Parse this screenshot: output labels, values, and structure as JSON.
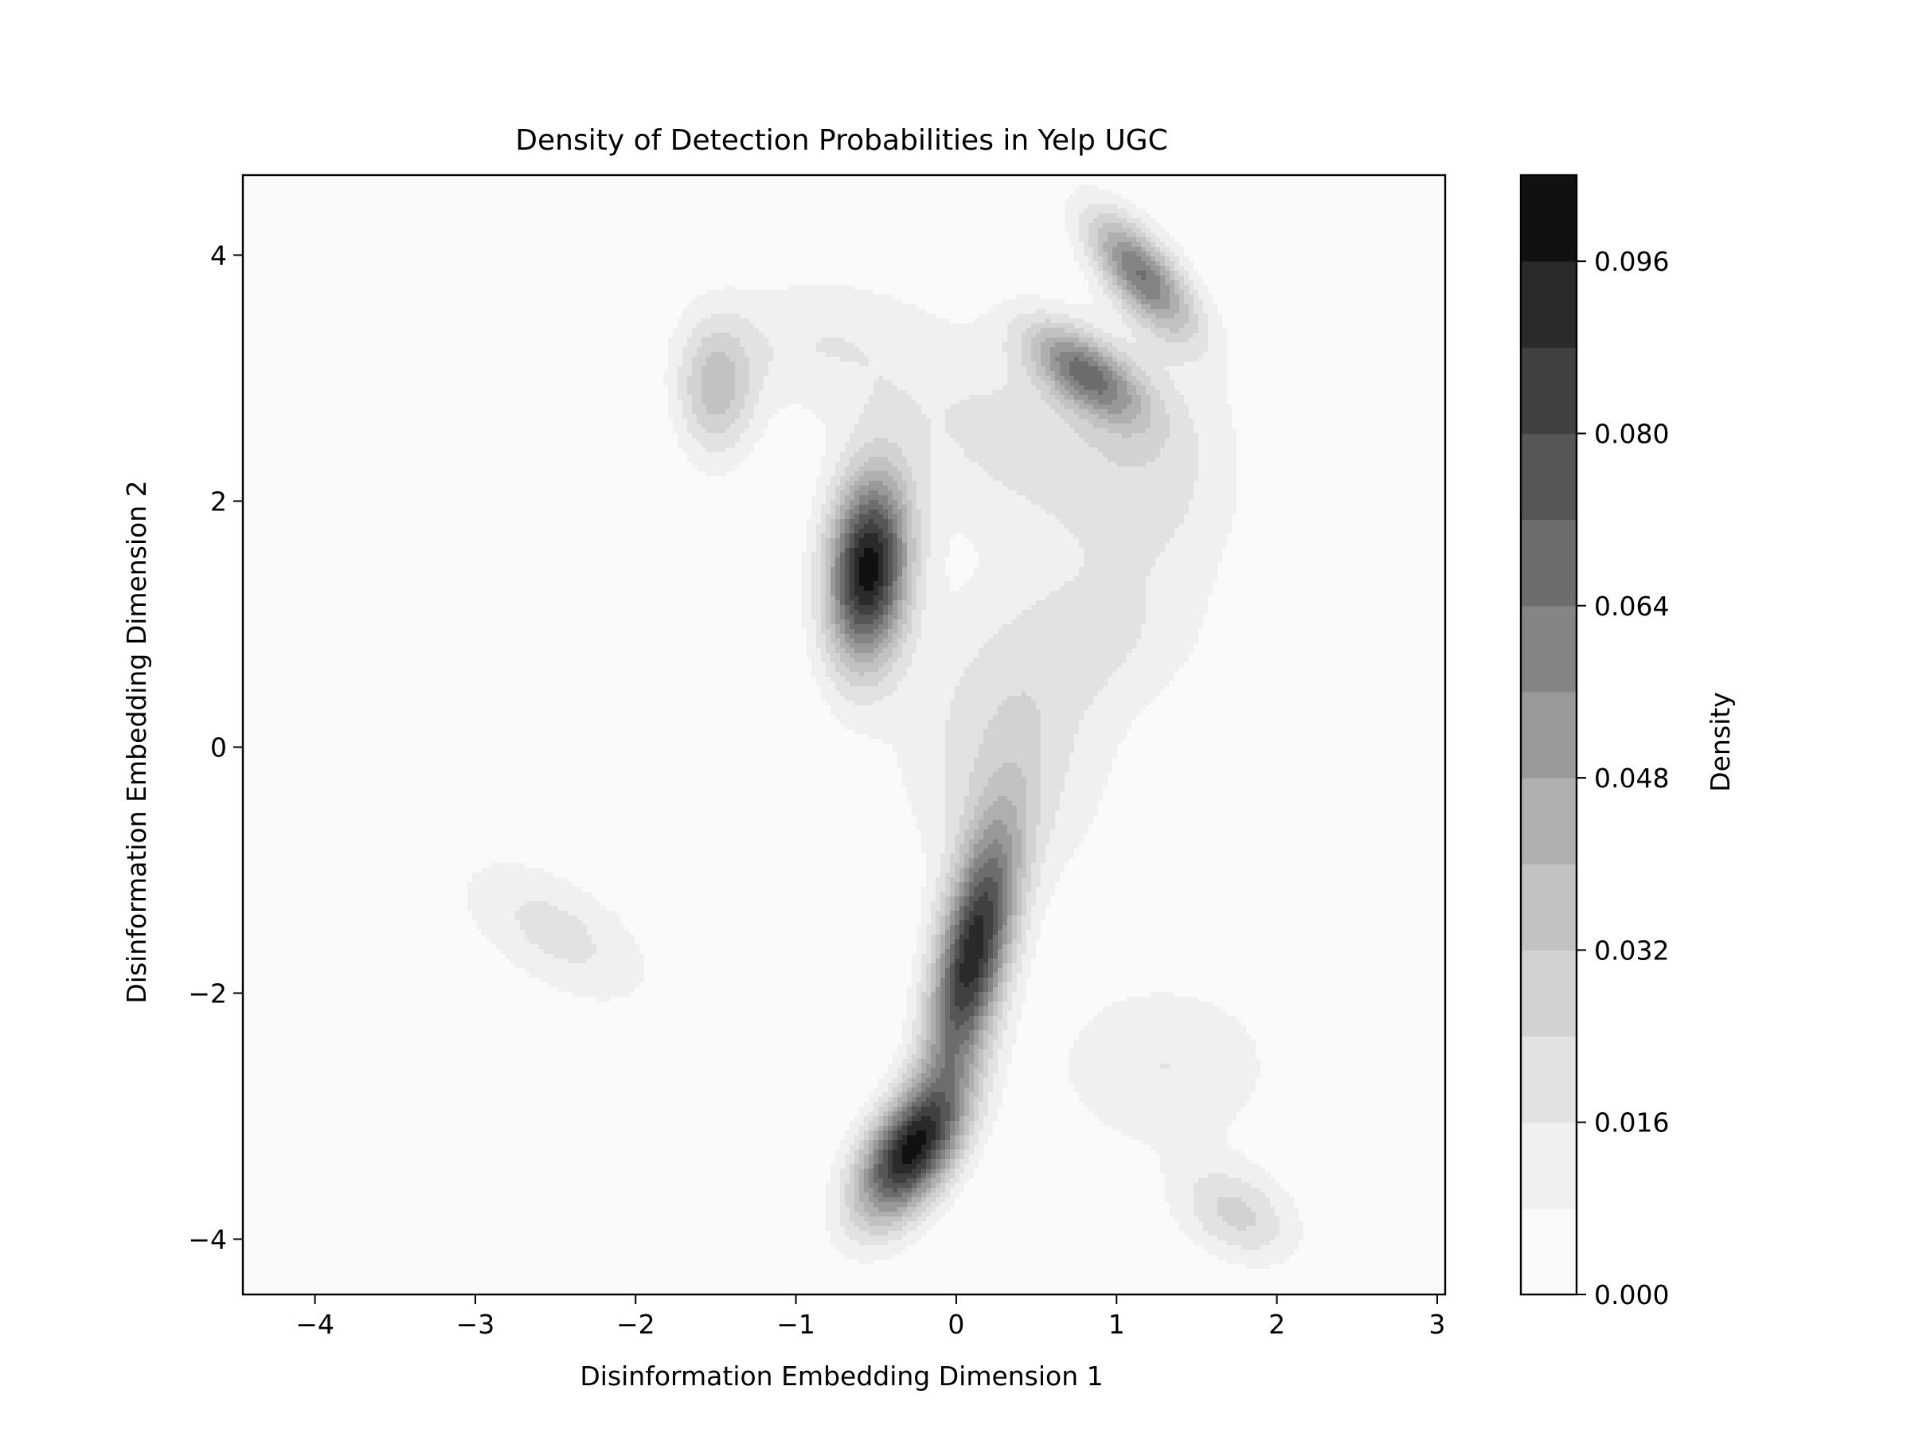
{
  "chart_data": {
    "type": "heatmap",
    "subtype": "filled-contour",
    "title": "Density of Detection Probabilities in Yelp UGC",
    "xlabel": "Disinformation Embedding Dimension 1",
    "ylabel": "Disinformation Embedding Dimension 2",
    "xlim": [
      -4.45,
      3.05
    ],
    "ylim": [
      -4.45,
      4.65
    ],
    "xticks": [
      -4,
      -3,
      -2,
      -1,
      0,
      1,
      2,
      3
    ],
    "yticks": [
      -4,
      -2,
      0,
      2,
      4
    ],
    "xtick_labels": [
      "−4",
      "−3",
      "−2",
      "−1",
      "0",
      "1",
      "2",
      "3"
    ],
    "ytick_labels": [
      "−4",
      "−2",
      "0",
      "2",
      "4"
    ],
    "colormap": "Greys",
    "grid": false,
    "colorbar": {
      "label": "Density",
      "range": [
        0.0,
        0.104
      ],
      "levels": [
        0.0,
        0.008,
        0.016,
        0.024,
        0.032,
        0.04,
        0.048,
        0.056,
        0.064,
        0.072,
        0.08,
        0.088,
        0.096,
        0.104
      ],
      "level_colors": [
        "#fafafa",
        "#f0f0f0",
        "#e2e2e2",
        "#d2d2d2",
        "#c2c2c2",
        "#afafaf",
        "#999999",
        "#848484",
        "#6d6d6d",
        "#565656",
        "#404040",
        "#2a2a2a",
        "#111111"
      ],
      "ticks": [
        0.0,
        0.016,
        0.032,
        0.048,
        0.064,
        0.08,
        0.096
      ],
      "tick_labels": [
        "0.000",
        "0.016",
        "0.032",
        "0.048",
        "0.064",
        "0.080",
        "0.096"
      ]
    },
    "density_peaks": [
      {
        "x": -0.55,
        "y": 1.45,
        "density": 0.1
      },
      {
        "x": 0.1,
        "y": -1.7,
        "density": 0.092
      },
      {
        "x": -0.3,
        "y": -3.3,
        "density": 0.094
      },
      {
        "x": 1.15,
        "y": 3.85,
        "density": 0.062
      },
      {
        "x": 0.8,
        "y": 3.05,
        "density": 0.058
      },
      {
        "x": -1.5,
        "y": 2.9,
        "density": 0.034
      },
      {
        "x": -2.5,
        "y": -1.5,
        "density": 0.019
      },
      {
        "x": 1.75,
        "y": -3.8,
        "density": 0.026
      }
    ]
  }
}
